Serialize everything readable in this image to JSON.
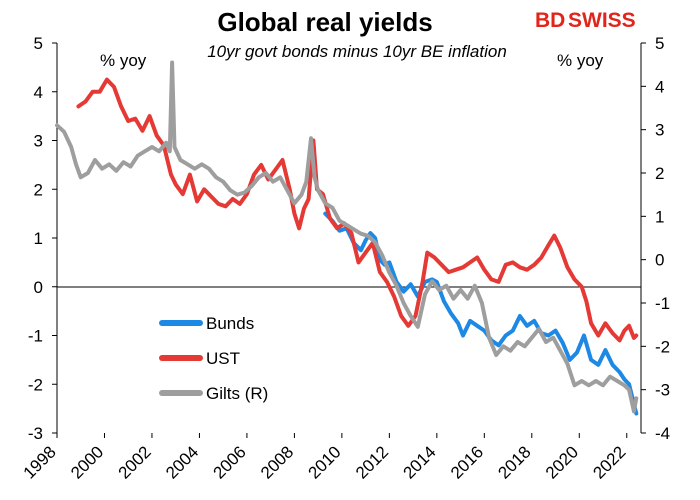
{
  "brand": {
    "logo_text_a": "BD",
    "logo_text_b": "SWISS",
    "logo_color": "#e1251b"
  },
  "chart_data": {
    "type": "line",
    "title": "Global real yields",
    "subtitle": "10yr govt bonds minus 10yr BE inflation",
    "y_left_unit": "% yoy",
    "y_right_unit": "% yoy",
    "xlim": [
      1998,
      2022.6
    ],
    "ylim_left": [
      -3,
      5
    ],
    "ylim_right": [
      -4,
      5
    ],
    "x_ticks": [
      "1998",
      "2000",
      "2002",
      "2004",
      "2006",
      "2008",
      "2010",
      "2012",
      "2014",
      "2016",
      "2018",
      "2020",
      "2022"
    ],
    "y_left_ticks": [
      "5",
      "4",
      "3",
      "2",
      "1",
      "0",
      "-1",
      "-2",
      "-3"
    ],
    "y_right_ticks": [
      "5",
      "4",
      "3",
      "2",
      "1",
      "0",
      "-1",
      "-2",
      "-3",
      "-4"
    ],
    "legend_position": "lower-left",
    "series": [
      {
        "name": "Bunds",
        "axis": "left",
        "color": "#1e88e5",
        "points": [
          [
            2009.3,
            1.5
          ],
          [
            2009.6,
            1.35
          ],
          [
            2009.9,
            1.15
          ],
          [
            2010.2,
            1.2
          ],
          [
            2010.5,
            0.9
          ],
          [
            2010.8,
            0.75
          ],
          [
            2011.0,
            0.95
          ],
          [
            2011.2,
            1.1
          ],
          [
            2011.4,
            1.0
          ],
          [
            2011.6,
            0.55
          ],
          [
            2011.8,
            0.45
          ],
          [
            2012.0,
            0.5
          ],
          [
            2012.3,
            0.1
          ],
          [
            2012.6,
            -0.1
          ],
          [
            2012.9,
            0.05
          ],
          [
            2013.2,
            -0.2
          ],
          [
            2013.5,
            0.1
          ],
          [
            2013.8,
            0.15
          ],
          [
            2014.0,
            0.1
          ],
          [
            2014.3,
            -0.3
          ],
          [
            2014.6,
            -0.55
          ],
          [
            2014.9,
            -0.75
          ],
          [
            2015.1,
            -1.0
          ],
          [
            2015.4,
            -0.7
          ],
          [
            2015.7,
            -0.8
          ],
          [
            2016.0,
            -0.9
          ],
          [
            2016.3,
            -1.1
          ],
          [
            2016.6,
            -1.2
          ],
          [
            2016.9,
            -1.0
          ],
          [
            2017.2,
            -0.9
          ],
          [
            2017.5,
            -0.6
          ],
          [
            2017.8,
            -0.8
          ],
          [
            2018.1,
            -0.7
          ],
          [
            2018.4,
            -0.95
          ],
          [
            2018.7,
            -1.0
          ],
          [
            2019.0,
            -0.9
          ],
          [
            2019.3,
            -1.15
          ],
          [
            2019.6,
            -1.5
          ],
          [
            2019.9,
            -1.35
          ],
          [
            2020.2,
            -1.0
          ],
          [
            2020.5,
            -1.5
          ],
          [
            2020.8,
            -1.6
          ],
          [
            2021.1,
            -1.3
          ],
          [
            2021.4,
            -1.6
          ],
          [
            2021.7,
            -1.75
          ],
          [
            2021.9,
            -1.9
          ],
          [
            2022.1,
            -2.0
          ],
          [
            2022.3,
            -2.4
          ],
          [
            2022.4,
            -2.6
          ]
        ]
      },
      {
        "name": "UST",
        "axis": "left",
        "color": "#e53935",
        "points": [
          [
            1998.9,
            3.7
          ],
          [
            1999.2,
            3.8
          ],
          [
            1999.5,
            4.0
          ],
          [
            1999.8,
            4.0
          ],
          [
            2000.1,
            4.25
          ],
          [
            2000.4,
            4.1
          ],
          [
            2000.7,
            3.7
          ],
          [
            2001.0,
            3.4
          ],
          [
            2001.3,
            3.45
          ],
          [
            2001.6,
            3.2
          ],
          [
            2001.9,
            3.5
          ],
          [
            2002.2,
            3.1
          ],
          [
            2002.5,
            2.9
          ],
          [
            2002.8,
            2.3
          ],
          [
            2003.0,
            2.1
          ],
          [
            2003.3,
            1.9
          ],
          [
            2003.6,
            2.3
          ],
          [
            2003.9,
            1.75
          ],
          [
            2004.2,
            2.0
          ],
          [
            2004.5,
            1.85
          ],
          [
            2004.8,
            1.7
          ],
          [
            2005.1,
            1.65
          ],
          [
            2005.4,
            1.8
          ],
          [
            2005.7,
            1.7
          ],
          [
            2006.0,
            1.9
          ],
          [
            2006.3,
            2.3
          ],
          [
            2006.6,
            2.5
          ],
          [
            2006.9,
            2.2
          ],
          [
            2007.2,
            2.4
          ],
          [
            2007.5,
            2.6
          ],
          [
            2007.8,
            2.0
          ],
          [
            2008.0,
            1.5
          ],
          [
            2008.2,
            1.2
          ],
          [
            2008.4,
            1.6
          ],
          [
            2008.6,
            1.8
          ],
          [
            2008.8,
            3.0
          ],
          [
            2008.95,
            2.0
          ],
          [
            2009.2,
            1.9
          ],
          [
            2009.5,
            1.4
          ],
          [
            2009.8,
            1.2
          ],
          [
            2010.1,
            1.3
          ],
          [
            2010.4,
            1.1
          ],
          [
            2010.7,
            0.5
          ],
          [
            2011.0,
            0.7
          ],
          [
            2011.3,
            0.9
          ],
          [
            2011.6,
            0.3
          ],
          [
            2011.9,
            0.1
          ],
          [
            2012.2,
            -0.2
          ],
          [
            2012.5,
            -0.6
          ],
          [
            2012.8,
            -0.8
          ],
          [
            2013.1,
            -0.6
          ],
          [
            2013.4,
            0.1
          ],
          [
            2013.6,
            0.7
          ],
          [
            2013.9,
            0.6
          ],
          [
            2014.2,
            0.45
          ],
          [
            2014.5,
            0.3
          ],
          [
            2014.8,
            0.35
          ],
          [
            2015.1,
            0.4
          ],
          [
            2015.4,
            0.5
          ],
          [
            2015.7,
            0.6
          ],
          [
            2016.0,
            0.35
          ],
          [
            2016.3,
            0.15
          ],
          [
            2016.6,
            0.1
          ],
          [
            2016.9,
            0.45
          ],
          [
            2017.2,
            0.5
          ],
          [
            2017.5,
            0.4
          ],
          [
            2017.8,
            0.35
          ],
          [
            2018.1,
            0.45
          ],
          [
            2018.4,
            0.6
          ],
          [
            2018.7,
            0.85
          ],
          [
            2018.95,
            1.05
          ],
          [
            2019.2,
            0.8
          ],
          [
            2019.5,
            0.4
          ],
          [
            2019.8,
            0.15
          ],
          [
            2020.1,
            0.0
          ],
          [
            2020.3,
            -0.3
          ],
          [
            2020.5,
            -0.75
          ],
          [
            2020.8,
            -1.0
          ],
          [
            2021.1,
            -0.75
          ],
          [
            2021.4,
            -0.95
          ],
          [
            2021.7,
            -1.1
          ],
          [
            2021.9,
            -0.9
          ],
          [
            2022.1,
            -0.8
          ],
          [
            2022.3,
            -1.05
          ],
          [
            2022.4,
            -1.0
          ]
        ]
      },
      {
        "name": "Gilts (R)",
        "axis": "right",
        "color": "#9e9e9e",
        "points": [
          [
            1998.0,
            3.1
          ],
          [
            1998.3,
            2.95
          ],
          [
            1998.6,
            2.6
          ],
          [
            1998.8,
            2.2
          ],
          [
            1999.0,
            1.9
          ],
          [
            1999.3,
            2.0
          ],
          [
            1999.6,
            2.3
          ],
          [
            1999.9,
            2.1
          ],
          [
            2000.2,
            2.2
          ],
          [
            2000.5,
            2.05
          ],
          [
            2000.8,
            2.25
          ],
          [
            2001.1,
            2.15
          ],
          [
            2001.4,
            2.4
          ],
          [
            2001.7,
            2.5
          ],
          [
            2002.0,
            2.6
          ],
          [
            2002.3,
            2.5
          ],
          [
            2002.6,
            2.7
          ],
          [
            2002.75,
            2.5
          ],
          [
            2002.85,
            4.55
          ],
          [
            2002.95,
            2.6
          ],
          [
            2003.2,
            2.3
          ],
          [
            2003.5,
            2.2
          ],
          [
            2003.8,
            2.1
          ],
          [
            2004.1,
            2.2
          ],
          [
            2004.4,
            2.1
          ],
          [
            2004.7,
            1.9
          ],
          [
            2005.0,
            1.8
          ],
          [
            2005.3,
            1.6
          ],
          [
            2005.6,
            1.5
          ],
          [
            2005.9,
            1.55
          ],
          [
            2006.2,
            1.7
          ],
          [
            2006.5,
            1.9
          ],
          [
            2006.8,
            2.0
          ],
          [
            2007.1,
            1.8
          ],
          [
            2007.4,
            1.9
          ],
          [
            2007.7,
            1.6
          ],
          [
            2008.0,
            1.3
          ],
          [
            2008.3,
            1.5
          ],
          [
            2008.5,
            1.8
          ],
          [
            2008.7,
            2.8
          ],
          [
            2008.85,
            1.9
          ],
          [
            2009.0,
            1.6
          ],
          [
            2009.3,
            1.3
          ],
          [
            2009.6,
            1.2
          ],
          [
            2009.9,
            0.9
          ],
          [
            2010.2,
            0.8
          ],
          [
            2010.5,
            0.7
          ],
          [
            2010.8,
            0.6
          ],
          [
            2011.1,
            0.55
          ],
          [
            2011.4,
            0.4
          ],
          [
            2011.7,
            0.1
          ],
          [
            2012.0,
            -0.3
          ],
          [
            2012.3,
            -0.6
          ],
          [
            2012.6,
            -1.0
          ],
          [
            2012.9,
            -1.3
          ],
          [
            2013.2,
            -1.55
          ],
          [
            2013.5,
            -0.8
          ],
          [
            2013.8,
            -0.5
          ],
          [
            2014.1,
            -0.7
          ],
          [
            2014.4,
            -0.6
          ],
          [
            2014.7,
            -0.9
          ],
          [
            2015.0,
            -0.7
          ],
          [
            2015.3,
            -0.9
          ],
          [
            2015.6,
            -0.6
          ],
          [
            2015.9,
            -1.0
          ],
          [
            2016.2,
            -1.8
          ],
          [
            2016.5,
            -2.2
          ],
          [
            2016.8,
            -2.0
          ],
          [
            2017.1,
            -2.1
          ],
          [
            2017.4,
            -1.9
          ],
          [
            2017.7,
            -2.0
          ],
          [
            2018.0,
            -1.8
          ],
          [
            2018.3,
            -1.6
          ],
          [
            2018.6,
            -1.9
          ],
          [
            2018.9,
            -1.8
          ],
          [
            2019.2,
            -2.1
          ],
          [
            2019.5,
            -2.4
          ],
          [
            2019.8,
            -2.9
          ],
          [
            2020.1,
            -2.8
          ],
          [
            2020.4,
            -2.9
          ],
          [
            2020.7,
            -2.8
          ],
          [
            2021.0,
            -2.9
          ],
          [
            2021.3,
            -2.7
          ],
          [
            2021.6,
            -2.8
          ],
          [
            2021.9,
            -2.9
          ],
          [
            2022.1,
            -3.0
          ],
          [
            2022.3,
            -3.5
          ],
          [
            2022.4,
            -3.2
          ]
        ]
      }
    ]
  }
}
